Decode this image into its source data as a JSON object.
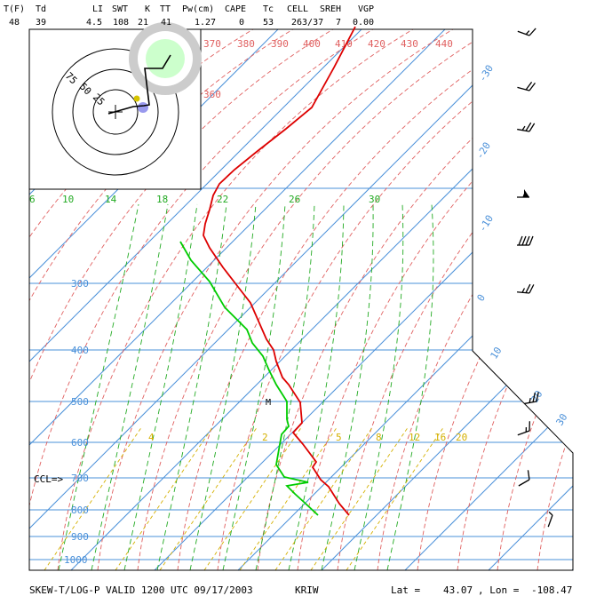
{
  "indices": {
    "labels": [
      "T(F)",
      "Td",
      "LI",
      "SWT",
      "K",
      "TT",
      "Pw(cm)",
      "CAPE",
      "Tc",
      "CELL",
      "SREH",
      "VGP"
    ],
    "values": [
      "48",
      "39",
      "4.5",
      "108",
      "21",
      "41",
      "1.27",
      "0",
      "53",
      "263/37",
      "7",
      "0.00"
    ]
  },
  "footer": {
    "title": "SKEW-T/LOG-P VALID 1200 UTC 09/17/2003",
    "station": "KRIW",
    "lat_label": "Lat =",
    "lat": "43.07",
    "lon_label": ", Lon =",
    "lon": "-108.47"
  },
  "annotations": {
    "ccl": "CCL=>",
    "marker": "M"
  },
  "hodograph": {
    "ring_labels": [
      "75",
      "50",
      "25"
    ]
  },
  "colors": {
    "temperature": "#dd0000",
    "dewpoint": "#00cc00",
    "isotherm": "#4a90d9",
    "isobar": "#4a90d9",
    "dry_adiabat": "#e06060",
    "moist_adiabat": "#22aa22",
    "mixing_ratio": "#d4b000"
  },
  "chart_data": {
    "type": "line",
    "title": "SKEW-T/LOG-P VALID 1200 UTC 09/17/2003",
    "pressure_ticks": [
      "300",
      "400",
      "500",
      "600",
      "700",
      "800",
      "900",
      "1000"
    ],
    "isotherm_labels": [
      "-30",
      "-20",
      "-10",
      "0",
      "10",
      "20",
      "30"
    ],
    "theta_labels": [
      "370",
      "380",
      "390",
      "400",
      "410",
      "420",
      "430",
      "440"
    ],
    "theta_label_360": "360",
    "theta_e_labels": [
      "6",
      "10",
      "14",
      "18",
      "22",
      "26",
      "30"
    ],
    "mixing_ratio_labels": [
      "4",
      "2",
      "5",
      "8",
      "12",
      "16",
      "20"
    ],
    "series": [
      {
        "name": "temperature",
        "points": [
          [
            400,
            30
          ],
          [
            376,
            76
          ],
          [
            351,
            121
          ],
          [
            322,
            145
          ],
          [
            290,
            170
          ],
          [
            264,
            191
          ],
          [
            247,
            207
          ],
          [
            240,
            220
          ],
          [
            236,
            236
          ],
          [
            231,
            252
          ],
          [
            229,
            265
          ],
          [
            236,
            279
          ],
          [
            251,
            301
          ],
          [
            268,
            323
          ],
          [
            282,
            341
          ],
          [
            300,
            382
          ],
          [
            308,
            394
          ],
          [
            311,
            407
          ],
          [
            318,
            425
          ],
          [
            325,
            433
          ],
          [
            338,
            453
          ],
          [
            340,
            476
          ],
          [
            330,
            487
          ],
          [
            341,
            500
          ],
          [
            356,
            520
          ],
          [
            352,
            526
          ],
          [
            361,
            540
          ],
          [
            370,
            548
          ],
          [
            382,
            567
          ],
          [
            393,
            580
          ]
        ]
      },
      {
        "name": "dewpoint",
        "points": [
          [
            203,
            272
          ],
          [
            215,
            293
          ],
          [
            236,
            317
          ],
          [
            253,
            346
          ],
          [
            278,
            371
          ],
          [
            284,
            386
          ],
          [
            296,
            401
          ],
          [
            303,
            417
          ],
          [
            311,
            433
          ],
          [
            323,
            452
          ],
          [
            323,
            472
          ],
          [
            325,
            480
          ],
          [
            317,
            489
          ],
          [
            311,
            523
          ],
          [
            320,
            537
          ],
          [
            347,
            543
          ],
          [
            323,
            547
          ],
          [
            332,
            556
          ],
          [
            343,
            566
          ],
          [
            358,
            580
          ]
        ]
      }
    ],
    "wind_barbs": [
      {
        "pressure_level": "top",
        "speed_kt": 15,
        "direction_deg": 290
      },
      {
        "pressure_level": "upper",
        "speed_kt": 20,
        "direction_deg": 285
      },
      {
        "pressure_level": "250",
        "speed_kt": 25,
        "direction_deg": 280
      },
      {
        "pressure_level": "300",
        "speed_kt": 55,
        "direction_deg": 270
      },
      {
        "pressure_level": "350",
        "speed_kt": 40,
        "direction_deg": 270
      },
      {
        "pressure_level": "400",
        "speed_kt": 25,
        "direction_deg": 275
      },
      {
        "pressure_level": "500",
        "speed_kt": 25,
        "direction_deg": 260
      },
      {
        "pressure_level": "600",
        "speed_kt": 15,
        "direction_deg": 250
      },
      {
        "pressure_level": "700",
        "speed_kt": 10,
        "direction_deg": 240
      },
      {
        "pressure_level": "800",
        "speed_kt": 5,
        "direction_deg": 200
      }
    ]
  }
}
